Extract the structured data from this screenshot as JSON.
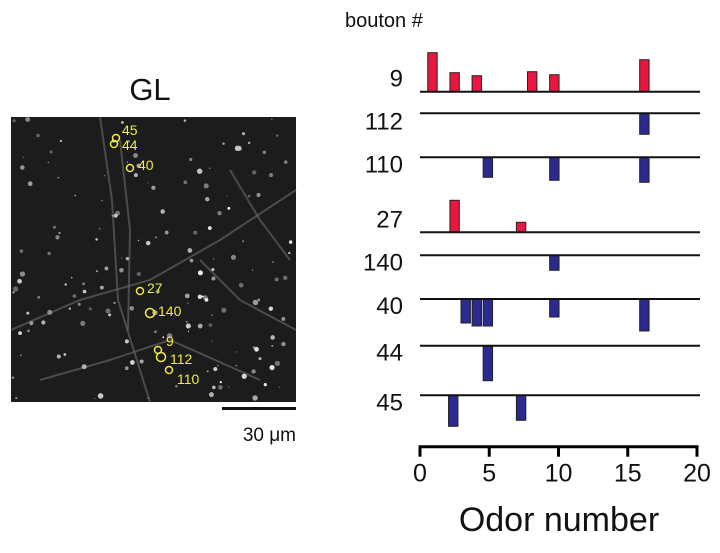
{
  "image_panel": {
    "title": "GL",
    "scale_bar_label": "30 μm",
    "marker_color": "#f2e84a",
    "boutons": [
      {
        "label": "45"
      },
      {
        "label": "44"
      },
      {
        "label": "40"
      },
      {
        "label": "27"
      },
      {
        "label": "140"
      },
      {
        "label": "9"
      },
      {
        "label": "112"
      },
      {
        "label": "110"
      }
    ]
  },
  "chart_data": {
    "type": "bar",
    "title": "",
    "row_header": "bouton #",
    "xlabel": "Odor number",
    "xlim": [
      0,
      20
    ],
    "xticks": [
      "0",
      "5",
      "10",
      "15",
      "20"
    ],
    "grid": false,
    "colors": {
      "excitatory": "#e8173f",
      "inhibitory": "#2b2a8f"
    },
    "note_units": "relative response amplitude (unlabeled)",
    "rows": [
      {
        "name": "9",
        "bars": [
          {
            "x": 0.9,
            "v": 3.9
          },
          {
            "x": 2.5,
            "v": 1.9
          },
          {
            "x": 4.1,
            "v": 1.6
          },
          {
            "x": 8.1,
            "v": 2.0
          },
          {
            "x": 9.7,
            "v": 1.7
          },
          {
            "x": 16.2,
            "v": 3.2
          }
        ]
      },
      {
        "name": "112",
        "bars": [
          {
            "x": 16.2,
            "v": -2.1
          }
        ]
      },
      {
        "name": "110",
        "bars": [
          {
            "x": 4.9,
            "v": -2.0
          },
          {
            "x": 9.7,
            "v": -2.3
          },
          {
            "x": 16.2,
            "v": -2.5
          }
        ]
      },
      {
        "name": "27",
        "bars": [
          {
            "x": 2.5,
            "v": 3.2
          },
          {
            "x": 7.3,
            "v": 1.0
          }
        ]
      },
      {
        "name": "140",
        "bars": [
          {
            "x": 9.7,
            "v": -1.5
          }
        ]
      },
      {
        "name": "40",
        "bars": [
          {
            "x": 3.3,
            "v": -2.4
          },
          {
            "x": 4.1,
            "v": -2.7
          },
          {
            "x": 4.9,
            "v": -2.7
          },
          {
            "x": 9.7,
            "v": -1.8
          },
          {
            "x": 16.2,
            "v": -3.2
          }
        ]
      },
      {
        "name": "44",
        "bars": [
          {
            "x": 4.9,
            "v": -3.5
          }
        ]
      },
      {
        "name": "45",
        "bars": [
          {
            "x": 2.4,
            "v": -3.1
          },
          {
            "x": 7.3,
            "v": -2.5
          }
        ]
      }
    ]
  }
}
